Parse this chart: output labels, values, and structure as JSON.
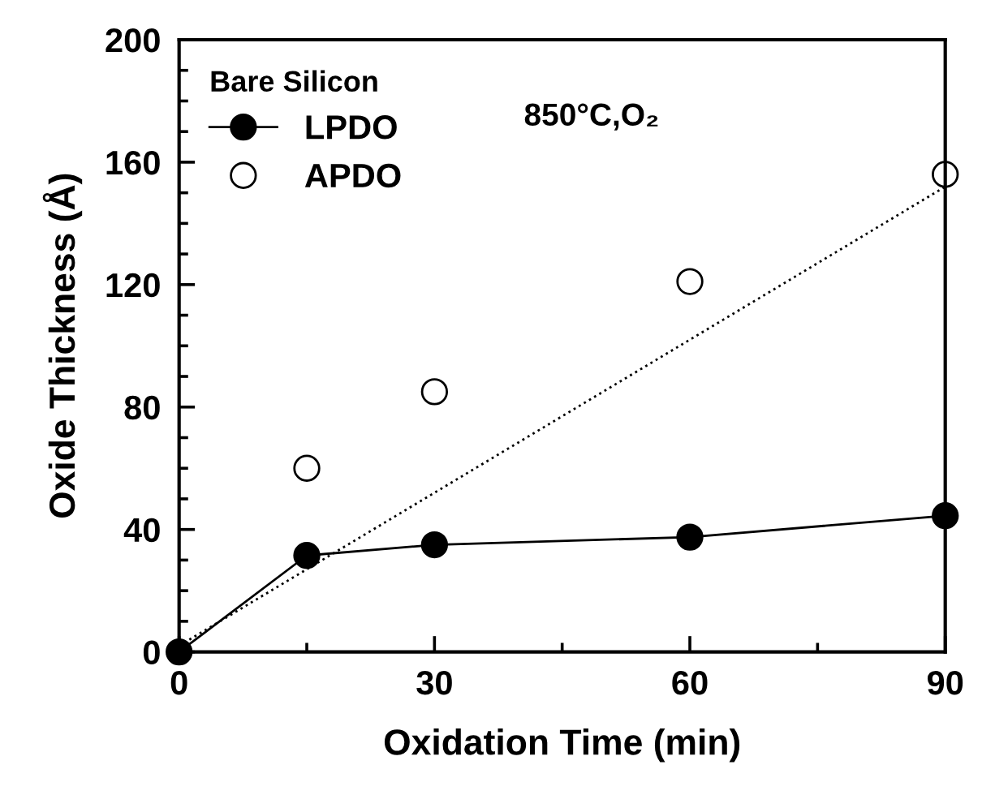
{
  "chart_data": {
    "type": "line",
    "xlabel": "Oxidation Time (min)",
    "ylabel": "Oxide Thickness (Å)",
    "legend_title": "Bare Silicon",
    "annotations": [
      "850°C,O₂"
    ],
    "xlim": [
      0,
      90
    ],
    "ylim": [
      0,
      200
    ],
    "xticks": [
      0,
      30,
      60,
      90
    ],
    "yticks": [
      0,
      40,
      80,
      120,
      160,
      200
    ],
    "legend": "top left",
    "grid": false,
    "series": [
      {
        "name": "LPDO",
        "type": "line",
        "color": "#000000",
        "marker": "circle",
        "line_style": "solid",
        "x": [
          0,
          15,
          30,
          60,
          90
        ],
        "values": [
          0,
          31.5,
          35,
          37.5,
          44.5
        ]
      },
      {
        "name": "APDO",
        "type": "scatter",
        "color": "#000000",
        "marker": "circle",
        "x": [
          15,
          30,
          60,
          90
        ],
        "values": [
          60,
          85,
          121,
          156
        ]
      },
      {
        "color": "#000000",
        "marker": "none",
        "line_style": "dotted",
        "x": [
          0,
          90
        ],
        "values": [
          2,
          152
        ]
      }
    ]
  }
}
